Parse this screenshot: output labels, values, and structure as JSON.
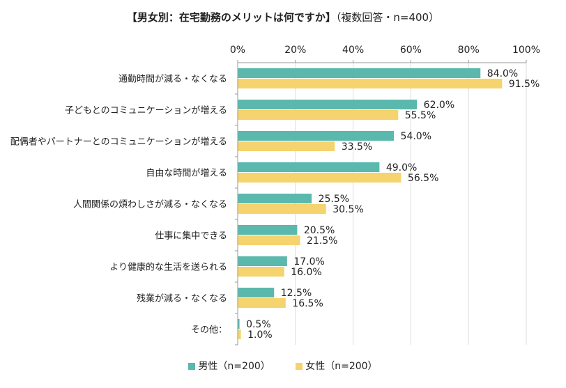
{
  "title": {
    "main": "【男女別：在宅勤務のメリットは何ですか】",
    "sub": "（複数回答・n=400）"
  },
  "colors": {
    "male": "#5bb8ad",
    "female": "#f5d36e",
    "axis": "#999999",
    "grid": "#dddddd"
  },
  "chart_data": {
    "type": "bar",
    "orientation": "horizontal",
    "categories": [
      "通勤時間が減る・なくなる",
      "子どもとのコミュニケーションが増える",
      "配偶者やパートナーとのコミュニケーションが増える",
      "自由な時間が増える",
      "人間関係の煩わしさが減る・なくなる",
      "仕事に集中できる",
      "より健康的な生活を送られる",
      "残業が減る・なくなる",
      "その他："
    ],
    "series": [
      {
        "name": "男性（n=200）",
        "values": [
          84.0,
          62.0,
          54.0,
          49.0,
          25.5,
          20.5,
          17.0,
          12.5,
          0.5
        ]
      },
      {
        "name": "女性（n=200）",
        "values": [
          91.5,
          55.5,
          33.5,
          56.5,
          30.5,
          21.5,
          16.0,
          16.5,
          1.0
        ]
      }
    ],
    "xlim": [
      0,
      100
    ],
    "ticks": [
      0,
      20,
      40,
      60,
      80,
      100
    ],
    "tick_labels": [
      "0%",
      "20%",
      "40%",
      "60%",
      "80%",
      "100%"
    ],
    "legend_position": "bottom"
  }
}
